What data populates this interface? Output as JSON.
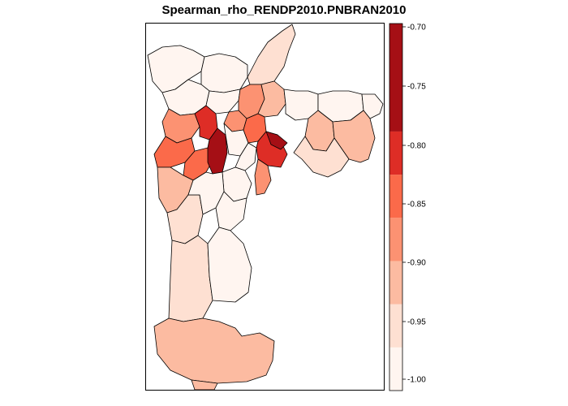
{
  "title": "Spearman_rho_RENDP2010.PNBRAN2010",
  "legend": {
    "breaks": [
      -1.0,
      -0.95,
      -0.9,
      -0.85,
      -0.8,
      -0.75,
      -0.7
    ],
    "tick_labels": [
      "-1.00",
      "-0.95",
      "-0.90",
      "-0.85",
      "-0.80",
      "-0.75",
      "-0.70"
    ],
    "classes": [
      {
        "range": [
          -1.0,
          -0.95
        ],
        "color": "#fff5f0"
      },
      {
        "range": [
          -0.95,
          -0.9
        ],
        "color": "#fee0d2"
      },
      {
        "range": [
          -0.9,
          -0.85
        ],
        "color": "#fcbba1"
      },
      {
        "range": [
          -0.85,
          -0.8
        ],
        "color": "#fc9272"
      },
      {
        "range": [
          -0.8,
          -0.75
        ],
        "color": "#fb6a4a"
      },
      {
        "range": [
          -0.75,
          -0.7
        ],
        "color": "#de2d26"
      },
      {
        "range": [
          -0.7,
          -0.65
        ],
        "color": "#a50f15"
      }
    ]
  },
  "regions": [
    {
      "id": "far-north",
      "class": 1
    },
    {
      "id": "northwest-a",
      "class": 0
    },
    {
      "id": "northwest-b",
      "class": 0
    },
    {
      "id": "north-central-a",
      "class": 0
    },
    {
      "id": "north-central-b",
      "class": 0
    },
    {
      "id": "north-ring-a",
      "class": 3
    },
    {
      "id": "north-ring-b",
      "class": 2
    },
    {
      "id": "north-ring-c",
      "class": 3
    },
    {
      "id": "west-a",
      "class": 3
    },
    {
      "id": "west-b",
      "class": 4
    },
    {
      "id": "west-c",
      "class": 4
    },
    {
      "id": "center-west-a",
      "class": 5
    },
    {
      "id": "center-west-b",
      "class": 6
    },
    {
      "id": "center-a",
      "class": 0
    },
    {
      "id": "center-b",
      "class": 0
    },
    {
      "id": "center-east-a",
      "class": 4
    },
    {
      "id": "center-east-b",
      "class": 5
    },
    {
      "id": "center-east-c",
      "class": 6
    },
    {
      "id": "south-center-a",
      "class": 3
    },
    {
      "id": "south-center-b",
      "class": 0
    },
    {
      "id": "east-a",
      "class": 0
    },
    {
      "id": "east-b",
      "class": 0
    },
    {
      "id": "east-c",
      "class": 0
    },
    {
      "id": "east-d",
      "class": 2
    },
    {
      "id": "east-e",
      "class": 2
    },
    {
      "id": "east-f",
      "class": 1
    },
    {
      "id": "southwest-a",
      "class": 2
    },
    {
      "id": "southwest-b",
      "class": 1
    },
    {
      "id": "south-mid-a",
      "class": 0
    },
    {
      "id": "south-mid-b",
      "class": 0
    },
    {
      "id": "south-a",
      "class": 1
    },
    {
      "id": "south-b",
      "class": 0
    },
    {
      "id": "far-south",
      "class": 2
    },
    {
      "id": "far-south-tip",
      "class": 2
    }
  ]
}
